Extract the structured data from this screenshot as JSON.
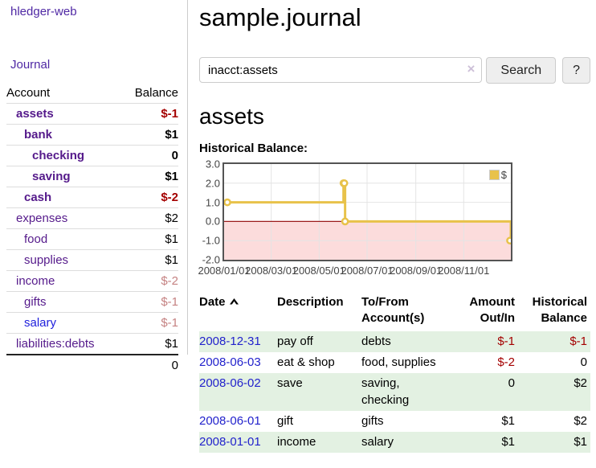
{
  "sidebar": {
    "app_title": "hledger-web",
    "journal_link": "Journal",
    "table": {
      "headers": {
        "account": "Account",
        "balance": "Balance"
      },
      "rows": [
        {
          "name": "assets",
          "balance": "$-1"
        },
        {
          "name": "bank",
          "balance": "$1"
        },
        {
          "name": "checking",
          "balance": "0"
        },
        {
          "name": "saving",
          "balance": "$1"
        },
        {
          "name": "cash",
          "balance": "$-2"
        },
        {
          "name": "expenses",
          "balance": "$2"
        },
        {
          "name": "food",
          "balance": "$1"
        },
        {
          "name": "supplies",
          "balance": "$1"
        },
        {
          "name": "income",
          "balance": "$-2"
        },
        {
          "name": "gifts",
          "balance": "$-1"
        },
        {
          "name": "salary",
          "balance": "$-1"
        },
        {
          "name": "liabilities:debts",
          "balance": "$1"
        }
      ],
      "total": "0"
    }
  },
  "main": {
    "title": "sample.journal",
    "search": {
      "value": "inacct:assets",
      "clear_icon": "×",
      "button_label": "Search",
      "help_label": "?"
    },
    "account_heading": "assets",
    "chart_label": "Historical Balance:"
  },
  "chart_data": {
    "type": "line",
    "title": "Historical Balance:",
    "step": true,
    "series": [
      {
        "name": "$",
        "color": "#e8c24a",
        "points": [
          [
            "2008-01-01",
            1
          ],
          [
            "2008-06-01",
            2
          ],
          [
            "2008-06-02",
            2
          ],
          [
            "2008-06-03",
            0
          ],
          [
            "2008-12-31",
            -1
          ]
        ]
      }
    ],
    "xlim": [
      "2008-01-01",
      "2008-12-31"
    ],
    "ylim": [
      -2,
      3
    ],
    "xticks": [
      "2008/01/01",
      "2008/03/01",
      "2008/05/01",
      "2008/07/01",
      "2008/09/01",
      "2008/11/01"
    ],
    "yticks": [
      "3.0",
      "2.0",
      "1.0",
      "0.0",
      "-1.0",
      "-2.0"
    ],
    "grid": true,
    "legend_position": "top-right",
    "legend_label": "$",
    "negative_region_fill": "#fcdcdc",
    "zero_line_color": "#9b1c1c",
    "grid_color": "#e4e4e4"
  },
  "register": {
    "headers": {
      "date": "Date",
      "description": "Description",
      "accounts": "To/From Account(s)",
      "amount": "Amount Out/In",
      "balance": "Historical Balance"
    },
    "rows": [
      {
        "date": "2008-12-31",
        "description": "pay off",
        "accounts": "debts",
        "amount": "$-1",
        "balance": "$-1"
      },
      {
        "date": "2008-06-03",
        "description": "eat & shop",
        "accounts": "food, supplies",
        "amount": "$-2",
        "balance": "0"
      },
      {
        "date": "2008-06-02",
        "description": "save",
        "accounts": "saving, checking",
        "amount": "0",
        "balance": "$2"
      },
      {
        "date": "2008-06-01",
        "description": "gift",
        "accounts": "gifts",
        "amount": "$1",
        "balance": "$2"
      },
      {
        "date": "2008-01-01",
        "description": "income",
        "accounts": "salary",
        "amount": "$1",
        "balance": "$1"
      }
    ]
  }
}
